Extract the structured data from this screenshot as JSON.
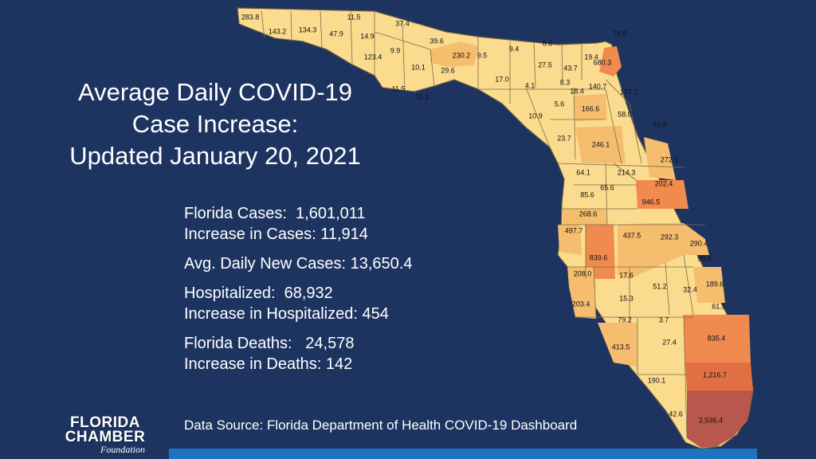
{
  "title": {
    "line1": "Average Daily COVID-19",
    "line2": "Case Increase:",
    "line3": "Updated January 20, 2021"
  },
  "stats": [
    [
      "Florida Cases:  1,601,011",
      "Increase in Cases: 11,914"
    ],
    [
      "Avg. Daily New Cases: 13,650.4"
    ],
    [
      "Hospitalized:  68,932",
      "Increase in Hospitalized: 454"
    ],
    [
      "Florida Deaths:   24,578",
      "Increase in Deaths: 142"
    ]
  ],
  "source": "Data Source:  Florida Department of Health COVID-19 Dashboard",
  "logo": {
    "line1": "FLORIDA",
    "line2": "CHAMBER",
    "line3": "Foundation"
  },
  "colors": {
    "background": "#1d3461",
    "bar": "#1e73be",
    "low": "#fbdc8e",
    "mid": "#f5bd6e",
    "high": "#f08a4e",
    "higher": "#e26f43",
    "highest": "#b8584c"
  },
  "county_values": [
    "283.8",
    "143.2",
    "134.3",
    "47.9",
    "11.5",
    "14.9",
    "37.4",
    "9.9",
    "123.4",
    "39.6",
    "10.1",
    "29.6",
    "230.2",
    "9.5",
    "9.4",
    "8.6",
    "27.5",
    "43.7",
    "19.4",
    "76.5",
    "680.3",
    "11.5",
    "11.1",
    "17.0",
    "4.1",
    "8.3",
    "18.4",
    "140.7",
    "177.1",
    "5.6",
    "166.6",
    "58.0",
    "10.9",
    "51.8",
    "23.7",
    "246.1",
    "272.1",
    "64.1",
    "214.3",
    "65.6",
    "202.4",
    "85.6",
    "946.5",
    "268.6",
    "497.7",
    "437.5",
    "292.3",
    "290.4",
    "839.6",
    "98.8",
    "208.0",
    "17.6",
    "51.2",
    "32.4",
    "189.6",
    "203.4",
    "15.3",
    "61.5",
    "79.2",
    "3.7",
    "413.5",
    "27.4",
    "835.4",
    "190.1",
    "1,216.7",
    "42.6",
    "2,536.4"
  ]
}
